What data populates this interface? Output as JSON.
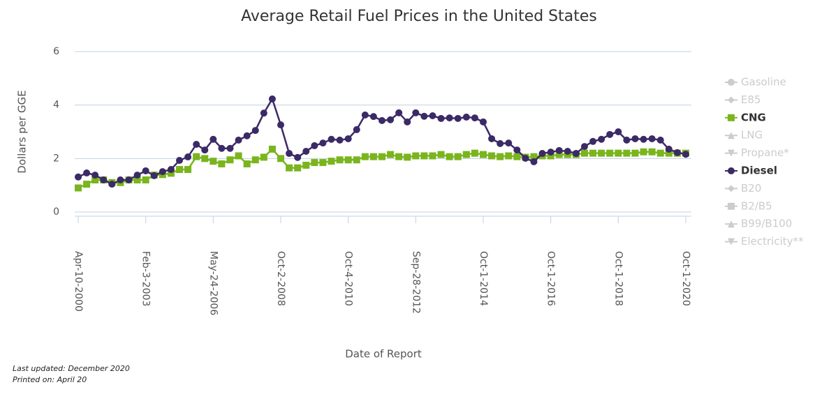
{
  "chart_data": {
    "type": "line",
    "title": "Average Retail Fuel Prices in the United States",
    "x_label": "Date of Report",
    "y_label": "Dollars per GGE",
    "footnotes": [
      "Last updated: December 2020",
      "Printed on: April 20"
    ],
    "categories": [
      "Apr-10-2000",
      null,
      null,
      null,
      null,
      null,
      null,
      null,
      "Feb-3-2003",
      null,
      null,
      null,
      null,
      null,
      null,
      null,
      "May-24-2006",
      null,
      null,
      null,
      null,
      null,
      null,
      null,
      "Oct-2-2008",
      null,
      null,
      null,
      null,
      null,
      null,
      null,
      "Oct-4-2010",
      null,
      null,
      null,
      null,
      null,
      null,
      null,
      "Sep-28-2012",
      null,
      null,
      null,
      null,
      null,
      null,
      null,
      "Oct-1-2014",
      null,
      null,
      null,
      null,
      null,
      null,
      null,
      "Oct-1-2016",
      null,
      null,
      null,
      null,
      null,
      null,
      null,
      "Oct-1-2018",
      null,
      null,
      null,
      null,
      null,
      null,
      null,
      "Oct-1-2020"
    ],
    "ylim": [
      0,
      6
    ],
    "yticks": [
      0,
      2,
      4,
      6
    ],
    "grid": true,
    "legend": "right",
    "series": [
      {
        "name": "Gasoline",
        "visible": false,
        "marker": "circle",
        "color": "#cccccc"
      },
      {
        "name": "E85",
        "visible": false,
        "marker": "diamond",
        "color": "#cccccc"
      },
      {
        "name": "CNG",
        "visible": true,
        "marker": "square",
        "color": "#7ab51d",
        "values": [
          0.9,
          1.04,
          1.2,
          1.2,
          1.1,
          1.1,
          1.2,
          1.2,
          1.2,
          1.38,
          1.4,
          1.45,
          1.59,
          1.59,
          2.07,
          2.0,
          1.9,
          1.8,
          1.95,
          2.1,
          1.8,
          1.95,
          2.05,
          2.35,
          2.0,
          1.65,
          1.65,
          1.75,
          1.85,
          1.85,
          1.9,
          1.95,
          1.95,
          1.95,
          2.07,
          2.07,
          2.07,
          2.15,
          2.07,
          2.05,
          2.1,
          2.1,
          2.1,
          2.15,
          2.07,
          2.07,
          2.15,
          2.2,
          2.15,
          2.1,
          2.07,
          2.1,
          2.07,
          2.05,
          2.07,
          2.1,
          2.1,
          2.15,
          2.15,
          2.15,
          2.2,
          2.2,
          2.2,
          2.2,
          2.2,
          2.2,
          2.2,
          2.25,
          2.25,
          2.2,
          2.2,
          2.2,
          2.2
        ]
      },
      {
        "name": "LNG",
        "visible": false,
        "marker": "triangle",
        "color": "#cccccc"
      },
      {
        "name": "Propane*",
        "visible": false,
        "marker": "triangle-down",
        "color": "#cccccc"
      },
      {
        "name": "Diesel",
        "visible": true,
        "marker": "circle",
        "color": "#3b2a66",
        "values": [
          1.31,
          1.46,
          1.38,
          1.2,
          1.04,
          1.2,
          1.2,
          1.38,
          1.54,
          1.36,
          1.51,
          1.59,
          1.93,
          2.06,
          2.53,
          2.32,
          2.72,
          2.38,
          2.38,
          2.69,
          2.85,
          3.05,
          3.7,
          4.23,
          3.26,
          2.19,
          2.04,
          2.27,
          2.48,
          2.58,
          2.72,
          2.69,
          2.74,
          3.08,
          3.63,
          3.57,
          3.42,
          3.45,
          3.71,
          3.37,
          3.71,
          3.58,
          3.6,
          3.5,
          3.52,
          3.5,
          3.55,
          3.52,
          3.37,
          2.74,
          2.56,
          2.58,
          2.32,
          2.01,
          1.88,
          2.19,
          2.24,
          2.3,
          2.27,
          2.19,
          2.45,
          2.64,
          2.72,
          2.9,
          3.0,
          2.69,
          2.74,
          2.72,
          2.74,
          2.69,
          2.35,
          2.22,
          2.16
        ]
      },
      {
        "name": "B20",
        "visible": false,
        "marker": "diamond",
        "color": "#cccccc"
      },
      {
        "name": "B2/B5",
        "visible": false,
        "marker": "square",
        "color": "#cccccc"
      },
      {
        "name": "B99/B100",
        "visible": false,
        "marker": "triangle",
        "color": "#cccccc"
      },
      {
        "name": "Electricity**",
        "visible": false,
        "marker": "triangle-down",
        "color": "#cccccc"
      }
    ]
  }
}
